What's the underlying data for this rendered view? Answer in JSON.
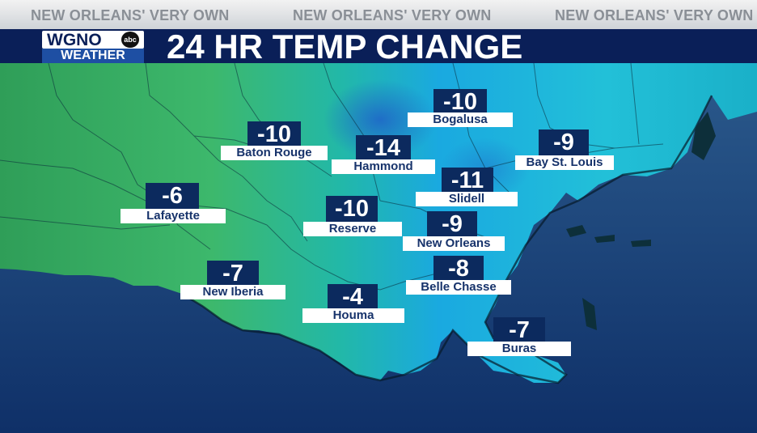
{
  "ticker": [
    "NEW ORLEANS' VERY OWN",
    "NEW ORLEANS' VERY OWN",
    "NEW ORLEANS' VERY OWN"
  ],
  "logo": {
    "top": "WGNO",
    "badge": "abc",
    "bottom": "WEATHER"
  },
  "title": "24 HR TEMP CHANGE",
  "colors": {
    "titlebar": "#0a1f58",
    "label_box": "#0c2a5e",
    "water": "#123a70",
    "land_cold": "#1aa9e0",
    "land_mild": "#3cb36a"
  },
  "cities": [
    {
      "name": "Bogalusa",
      "value": "-10"
    },
    {
      "name": "Baton Rouge",
      "value": "-10"
    },
    {
      "name": "Bay St. Louis",
      "value": "-9"
    },
    {
      "name": "Hammond",
      "value": "-14"
    },
    {
      "name": "Slidell",
      "value": "-11"
    },
    {
      "name": "Lafayette",
      "value": "-6"
    },
    {
      "name": "Reserve",
      "value": "-10"
    },
    {
      "name": "New Orleans",
      "value": "-9"
    },
    {
      "name": "Belle Chasse",
      "value": "-8"
    },
    {
      "name": "New Iberia",
      "value": "-7"
    },
    {
      "name": "Houma",
      "value": "-4"
    },
    {
      "name": "Buras",
      "value": "-7"
    }
  ]
}
